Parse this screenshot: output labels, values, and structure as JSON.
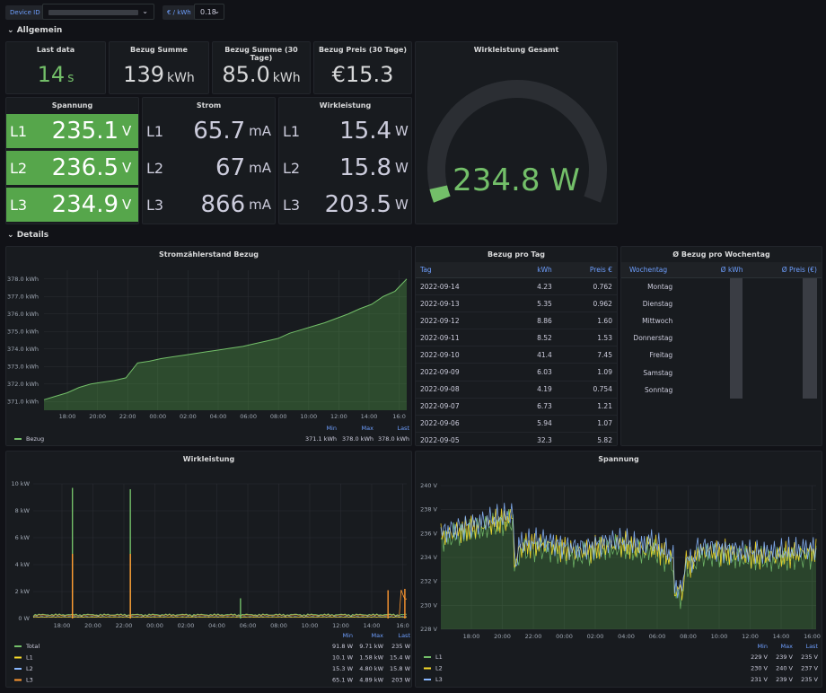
{
  "vars": {
    "device_label": "Device ID",
    "price_label": "€ / kWh",
    "price_value": "0.18"
  },
  "sections": {
    "general": "Allgemein",
    "details": "Details"
  },
  "stats": [
    {
      "title": "Last data",
      "value": "14",
      "unit": "s",
      "color": "#73bf69"
    },
    {
      "title": "Bezug Summe",
      "value": "139",
      "unit": "kWh",
      "color": "#d8d9da"
    },
    {
      "title": "Bezug Summe (30 Tage)",
      "value": "85.0",
      "unit": "kWh",
      "color": "#d8d9da"
    },
    {
      "title": "Bezug Preis (30 Tage)",
      "value": "€15.3",
      "unit": "",
      "color": "#d8d9da"
    }
  ],
  "phases": {
    "spannung": {
      "title": "Spannung",
      "unit": "V",
      "rows": [
        {
          "ph": "L1",
          "v": "235.1"
        },
        {
          "ph": "L2",
          "v": "236.5"
        },
        {
          "ph": "L3",
          "v": "234.9"
        }
      ]
    },
    "strom": {
      "title": "Strom",
      "rows": [
        {
          "ph": "L1",
          "v": "65.7",
          "u": "mA"
        },
        {
          "ph": "L2",
          "v": "67",
          "u": "mA"
        },
        {
          "ph": "L3",
          "v": "866",
          "u": "mA"
        }
      ]
    },
    "wirk": {
      "title": "Wirkleistung",
      "unit": "W",
      "rows": [
        {
          "ph": "L1",
          "v": "15.4"
        },
        {
          "ph": "L2",
          "v": "15.8"
        },
        {
          "ph": "L3",
          "v": "203.5"
        }
      ]
    }
  },
  "gauge": {
    "title": "Wirkleistung Gesamt",
    "value": "234.8 W",
    "fraction": 0.04,
    "color": "#73bf69"
  },
  "meter_chart": {
    "title": "Stromzählerstand Bezug",
    "chart_data": {
      "type": "area",
      "ylim": [
        370.5,
        378.5
      ],
      "yticks": [
        "371.0 kWh",
        "372.0 kWh",
        "373.0 kWh",
        "374.0 kWh",
        "375.0 kWh",
        "376.0 kWh",
        "377.0 kWh",
        "378.0 kWh"
      ],
      "xticks": [
        "18:00",
        "20:00",
        "22:00",
        "00:00",
        "02:00",
        "04:00",
        "06:00",
        "08:00",
        "10:00",
        "12:00",
        "14:00",
        "16:0"
      ],
      "series": [
        {
          "name": "Bezug",
          "values": [
            371.1,
            371.3,
            371.5,
            371.8,
            372.0,
            372.1,
            372.2,
            372.35,
            373.2,
            373.3,
            373.45,
            373.55,
            373.65,
            373.75,
            373.85,
            373.95,
            374.05,
            374.15,
            374.3,
            374.45,
            374.6,
            374.9,
            375.1,
            375.3,
            375.5,
            375.75,
            376.0,
            376.3,
            376.55,
            377.0,
            377.3,
            378.0
          ]
        }
      ]
    },
    "legend_headers": [
      "Min",
      "Max",
      "Last"
    ],
    "legend": [
      {
        "name": "Bezug",
        "color": "#73bf69",
        "min": "371.1 kWh",
        "max": "378.0 kWh",
        "last": "378.0 kWh"
      }
    ]
  },
  "daily_table": {
    "title": "Bezug pro Tag",
    "headers": [
      "Tag",
      "kWh",
      "Preis €"
    ],
    "rows": [
      [
        "2022-09-14",
        "4.23",
        "0.762"
      ],
      [
        "2022-09-13",
        "5.35",
        "0.962"
      ],
      [
        "2022-09-12",
        "8.86",
        "1.60"
      ],
      [
        "2022-09-11",
        "8.52",
        "1.53"
      ],
      [
        "2022-09-10",
        "41.4",
        "7.45"
      ],
      [
        "2022-09-09",
        "6.03",
        "1.09"
      ],
      [
        "2022-09-08",
        "4.19",
        "0.754"
      ],
      [
        "2022-09-07",
        "6.73",
        "1.21"
      ],
      [
        "2022-09-06",
        "5.94",
        "1.07"
      ],
      [
        "2022-09-05",
        "32.3",
        "5.82"
      ]
    ]
  },
  "weekday_table": {
    "title": "Ø Bezug pro Wochentag",
    "headers": [
      "Wochentag",
      "Ø kWh",
      "Ø Preis (€)"
    ],
    "rows": [
      "Montag",
      "Dienstag",
      "Mittwoch",
      "Donnerstag",
      "Freitag",
      "Samstag",
      "Sonntag"
    ]
  },
  "power_chart": {
    "title": "Wirkleistung",
    "chart_data": {
      "type": "line",
      "ylim": [
        0,
        10
      ],
      "yticks": [
        "0 W",
        "2 kW",
        "4 kW",
        "6 kW",
        "8 kW",
        "10 kW"
      ],
      "xticks": [
        "18:00",
        "20:00",
        "22:00",
        "00:00",
        "02:00",
        "04:00",
        "06:00",
        "08:00",
        "10:00",
        "12:00",
        "14:00",
        "16:0"
      ]
    },
    "legend_headers": [
      "Min",
      "Max",
      "Last"
    ],
    "legend": [
      {
        "name": "Total",
        "color": "#73bf69",
        "min": "91.8 W",
        "max": "9.71 kW",
        "last": "235 W"
      },
      {
        "name": "L1",
        "color": "#fade2a",
        "min": "10.1 W",
        "max": "1.58 kW",
        "last": "15.4 W"
      },
      {
        "name": "L2",
        "color": "#8ab8ff",
        "min": "15.3 W",
        "max": "4.80 kW",
        "last": "15.8 W"
      },
      {
        "name": "L3",
        "color": "#ff9830",
        "min": "65.1 W",
        "max": "4.89 kW",
        "last": "203 W"
      }
    ]
  },
  "voltage_chart": {
    "title": "Spannung",
    "chart_data": {
      "type": "line",
      "ylim": [
        228,
        240
      ],
      "yticks": [
        "228 V",
        "230 V",
        "232 V",
        "234 V",
        "236 V",
        "238 V",
        "240 V"
      ],
      "xticks": [
        "18:00",
        "20:00",
        "22:00",
        "00:00",
        "02:00",
        "04:00",
        "06:00",
        "08:00",
        "10:00",
        "12:00",
        "14:00",
        "16:00"
      ]
    },
    "legend_headers": [
      "Min",
      "Max",
      "Last"
    ],
    "legend": [
      {
        "name": "L1",
        "color": "#73bf69",
        "min": "229 V",
        "max": "239 V",
        "last": "235 V"
      },
      {
        "name": "L2",
        "color": "#fade2a",
        "min": "230 V",
        "max": "240 V",
        "last": "237 V"
      },
      {
        "name": "L3",
        "color": "#8ab8ff",
        "min": "231 V",
        "max": "239 V",
        "last": "235 V"
      }
    ]
  }
}
